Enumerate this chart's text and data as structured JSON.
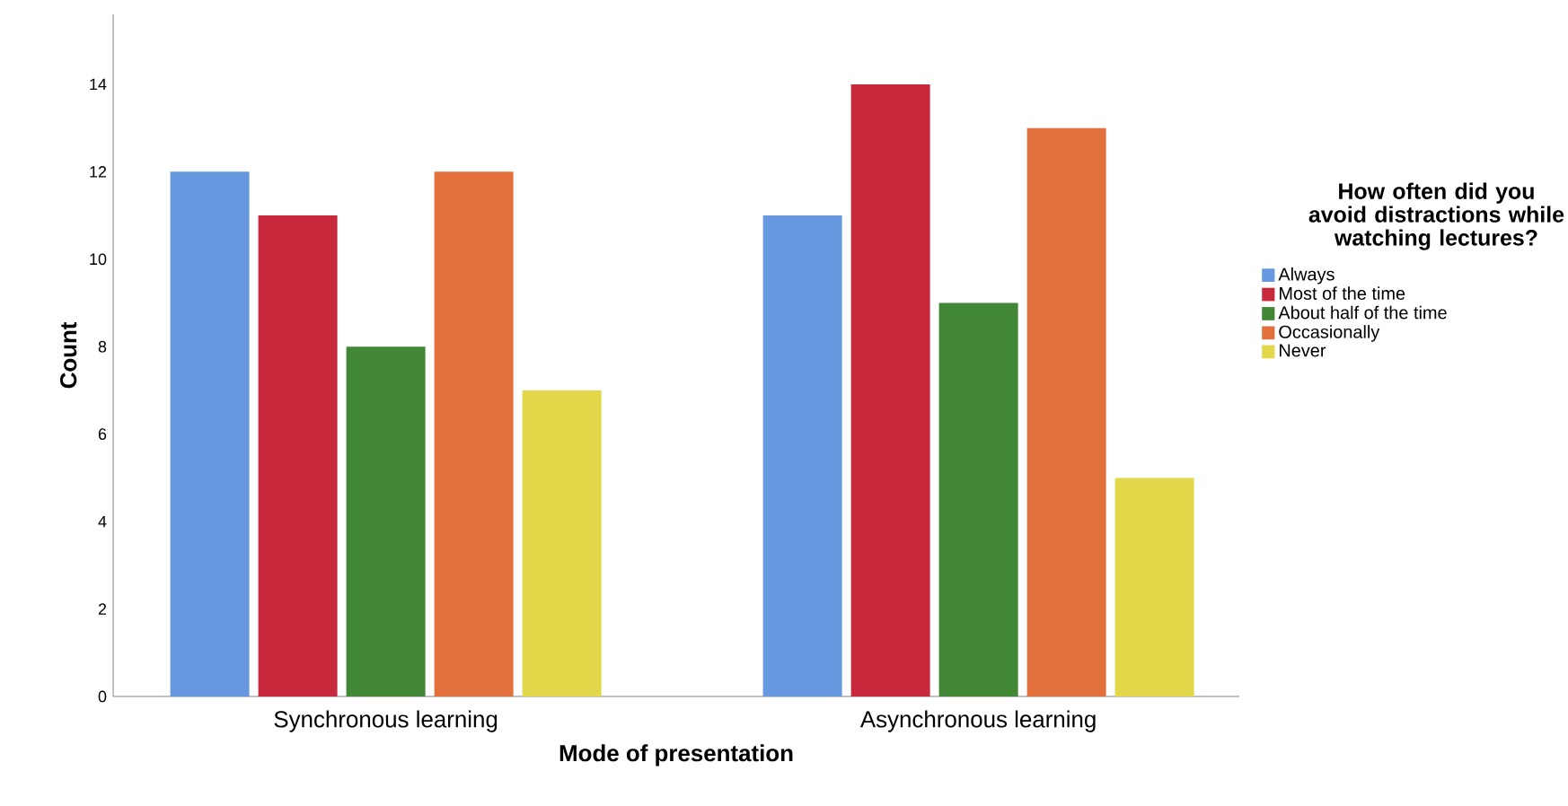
{
  "chart_data": {
    "type": "bar",
    "xlabel": "Mode of presentation",
    "ylabel": "Count",
    "legend_title": "How often did you avoid distractions while watching lectures?",
    "categories": [
      "Synchronous learning",
      "Asynchronous learning"
    ],
    "series": [
      {
        "name": "Always",
        "color": "#6699e0",
        "values": [
          12,
          11
        ]
      },
      {
        "name": "Most of the time",
        "color": "#c8283c",
        "values": [
          11,
          14
        ]
      },
      {
        "name": "About half of the time",
        "color": "#428735",
        "values": [
          8,
          9
        ]
      },
      {
        "name": "Occasionally",
        "color": "#e2703c",
        "values": [
          12,
          13
        ]
      },
      {
        "name": "Never",
        "color": "#e2d84a",
        "values": [
          7,
          5
        ]
      }
    ],
    "ylim": [
      0,
      15.6
    ],
    "yticks": [
      0,
      2,
      4,
      6,
      8,
      10,
      12,
      14
    ],
    "grid": false,
    "legend": "right"
  }
}
